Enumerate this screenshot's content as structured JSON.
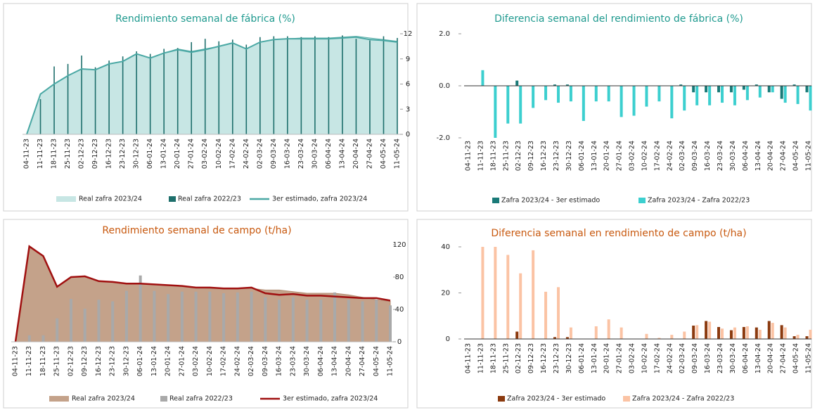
{
  "chart_data": [
    {
      "type": "combo",
      "title": "Rendimiento semanal de fábrica (%)",
      "title_color": "#1f9a8f",
      "y_axis_side": "right",
      "legend": "bottom",
      "categories": [
        "04-11-23",
        "11-11-23",
        "18-11-23",
        "25-11-23",
        "02-12-23",
        "09-12-23",
        "16-12-23",
        "23-12-23",
        "30-12-23",
        "06-01-24",
        "13-01-24",
        "20-01-24",
        "27-01-24",
        "03-02-24",
        "10-02-24",
        "17-02-24",
        "24-02-24",
        "02-03-24",
        "09-03-24",
        "16-03-24",
        "23-03-24",
        "30-03-24",
        "06-04-24",
        "13-04-24",
        "20-04-24",
        "27-04-24",
        "04-05-24",
        "11-05-24"
      ],
      "ylim": [
        0,
        12
      ],
      "yticks": [
        0,
        3,
        6,
        9,
        12
      ],
      "series": [
        {
          "name": "Real zafra 2023/24",
          "type": "area",
          "color": "#c7e6e4",
          "values": [
            0,
            4.8,
            6.0,
            7.0,
            7.8,
            7.7,
            8.4,
            8.7,
            9.6,
            9.1,
            9.7,
            10.2,
            9.9,
            10.2,
            10.5,
            10.9,
            10.2,
            11.0,
            11.3,
            11.4,
            11.5,
            11.5,
            11.5,
            11.6,
            11.7,
            11.5,
            11.3,
            11.1
          ]
        },
        {
          "name": "Real zafra 2022/23",
          "type": "bar",
          "color": "#1e6f6c",
          "values": [
            null,
            4.2,
            8.1,
            8.4,
            9.4,
            8.0,
            8.8,
            9.3,
            9.9,
            9.6,
            10.2,
            10.3,
            11.0,
            11.4,
            11.1,
            11.3,
            10.7,
            11.6,
            11.7,
            11.7,
            11.6,
            11.7,
            11.6,
            11.8,
            11.4,
            11.2,
            11.7,
            11.5
          ]
        },
        {
          "name": "3er estimado, zafra 2023/24",
          "type": "line",
          "color": "#4aa8a4",
          "values": [
            0,
            4.8,
            6.0,
            7.0,
            7.8,
            7.7,
            8.4,
            8.7,
            9.6,
            9.1,
            9.7,
            10.1,
            9.8,
            10.1,
            10.5,
            10.9,
            10.2,
            11.0,
            11.3,
            11.4,
            11.4,
            11.4,
            11.4,
            11.5,
            11.6,
            11.3,
            11.2,
            11.0
          ]
        }
      ]
    },
    {
      "type": "bar",
      "title": "Diferencia semanal del rendimiento de fábrica (%)",
      "title_color": "#1f9a8f",
      "y_axis_side": "left",
      "legend": "bottom",
      "categories": [
        "04-11-23",
        "11-11-23",
        "18-11-23",
        "25-11-23",
        "02-12-23",
        "09-12-23",
        "16-12-23",
        "23-12-23",
        "30-12-23",
        "06-01-24",
        "13-01-24",
        "20-01-24",
        "27-01-24",
        "03-02-24",
        "10-02-24",
        "17-02-24",
        "24-02-24",
        "02-03-24",
        "09-03-24",
        "16-03-24",
        "23-03-24",
        "30-03-24",
        "06-04-24",
        "13-04-24",
        "20-04-24",
        "27-04-24",
        "04-05-24",
        "11-05-24"
      ],
      "ylim": [
        -2,
        2
      ],
      "yticks": [
        {
          "value": -2,
          "label": "-2.0"
        },
        {
          "value": 0,
          "label": "0.0"
        },
        {
          "value": 2,
          "label": "2.0"
        }
      ],
      "series": [
        {
          "name": "Zafra 2023/24 - 3er estimado",
          "color": "#1a7a78",
          "values": [
            null,
            0,
            0,
            0,
            0.2,
            0,
            0,
            0.05,
            0.05,
            0,
            0,
            0,
            0,
            0,
            0,
            0,
            0,
            0.05,
            -0.25,
            -0.25,
            -0.25,
            -0.25,
            -0.15,
            0.05,
            -0.25,
            -0.5,
            0.05,
            -0.25
          ]
        },
        {
          "name": "Zafra 2023/24 - Zafra 2022/23",
          "color": "#3ccfcf",
          "values": [
            null,
            0.6,
            -2.0,
            -1.45,
            -1.45,
            -0.85,
            -0.55,
            -0.65,
            -0.6,
            -1.35,
            -0.6,
            -0.6,
            -1.2,
            -1.15,
            -0.8,
            -0.6,
            -1.25,
            -0.95,
            -0.75,
            -0.75,
            -0.65,
            -0.75,
            -0.55,
            -0.45,
            -0.25,
            -0.65,
            -0.7,
            -0.95
          ]
        }
      ]
    },
    {
      "type": "combo",
      "title": "Rendimiento semanal de campo (t/ha)",
      "title_color": "#c8590f",
      "y_axis_side": "right",
      "legend": "bottom",
      "categories": [
        "04-11-23",
        "11-11-23",
        "18-11-23",
        "25-11-23",
        "02-12-23",
        "09-12-23",
        "16-12-23",
        "23-12-23",
        "30-12-23",
        "06-01-24",
        "13-01-24",
        "20-01-24",
        "27-01-24",
        "03-02-24",
        "10-02-24",
        "17-02-24",
        "24-02-24",
        "02-03-24",
        "09-03-24",
        "16-03-24",
        "23-03-24",
        "30-03-24",
        "06-04-24",
        "13-04-24",
        "20-04-24",
        "27-04-24",
        "04-05-24",
        "11-05-24"
      ],
      "ylim": [
        0,
        120
      ],
      "yticks": [
        0,
        40,
        80,
        120
      ],
      "series": [
        {
          "name": "Real zafra 2023/24",
          "type": "area",
          "color": "#c4a28a",
          "values": [
            0,
            118,
            106,
            68,
            80,
            81,
            75,
            74,
            72,
            72,
            71,
            70,
            69,
            67,
            66,
            66,
            66,
            66,
            64,
            64,
            62,
            60,
            60,
            60,
            58,
            55,
            52,
            50
          ]
        },
        {
          "name": "Real zafra 2022/23",
          "type": "bar",
          "color": "#a9a9a9",
          "values": [
            null,
            8,
            8,
            29,
            53,
            41,
            52,
            50,
            63,
            82,
            63,
            59,
            62,
            62,
            62,
            60,
            61,
            62,
            55,
            52,
            55,
            52,
            52,
            61,
            52,
            50,
            52,
            45
          ]
        },
        {
          "name": "3er estimado, zafra 2023/24",
          "type": "line",
          "color": "#a01010",
          "values": [
            0,
            118,
            106,
            68,
            80,
            81,
            75,
            74,
            72,
            72,
            71,
            70,
            69,
            67,
            67,
            66,
            66,
            67,
            60,
            58,
            59,
            57,
            57,
            56,
            55,
            54,
            54,
            51
          ]
        }
      ]
    },
    {
      "type": "bar",
      "title": "Diferencia semanal en rendimiento de campo (t/ha)",
      "title_color": "#c8590f",
      "y_axis_side": "left",
      "legend": "bottom",
      "categories": [
        "04-11-23",
        "11-11-23",
        "18-11-23",
        "25-11-23",
        "02-12-23",
        "09-12-23",
        "16-12-23",
        "23-12-23",
        "30-12-23",
        "06-01-24",
        "13-01-24",
        "20-01-24",
        "27-01-24",
        "03-02-24",
        "10-02-24",
        "17-02-24",
        "24-02-24",
        "02-03-24",
        "09-03-24",
        "16-03-24",
        "23-03-24",
        "30-03-24",
        "06-04-24",
        "13-04-24",
        "20-04-24",
        "27-04-24",
        "04-05-24",
        "11-05-24"
      ],
      "ylim": [
        0,
        40
      ],
      "yticks": [
        0,
        20,
        40
      ],
      "series": [
        {
          "name": "Zafra 2023/24 - 3er estimado",
          "color": "#8b3a0f",
          "values": [
            null,
            0,
            0,
            0,
            3.2,
            0,
            0,
            0.8,
            0.8,
            0,
            0,
            0,
            0,
            0,
            0,
            0,
            0,
            0,
            5.8,
            7.8,
            5.2,
            3.8,
            5.2,
            5.0,
            7.8,
            6.0,
            1.2,
            1.2
          ]
        },
        {
          "name": "Zafra 2023/24 - Zafra 2022/23",
          "color": "#fbc3a4",
          "values": [
            null,
            40,
            40,
            36.5,
            28.5,
            38.5,
            20.5,
            22.5,
            5,
            0,
            5.5,
            8.5,
            5,
            0,
            2.2,
            0.5,
            1.8,
            3.2,
            6,
            7.5,
            4.5,
            5,
            5.5,
            4,
            7,
            5,
            1.8,
            4
          ]
        }
      ]
    }
  ]
}
